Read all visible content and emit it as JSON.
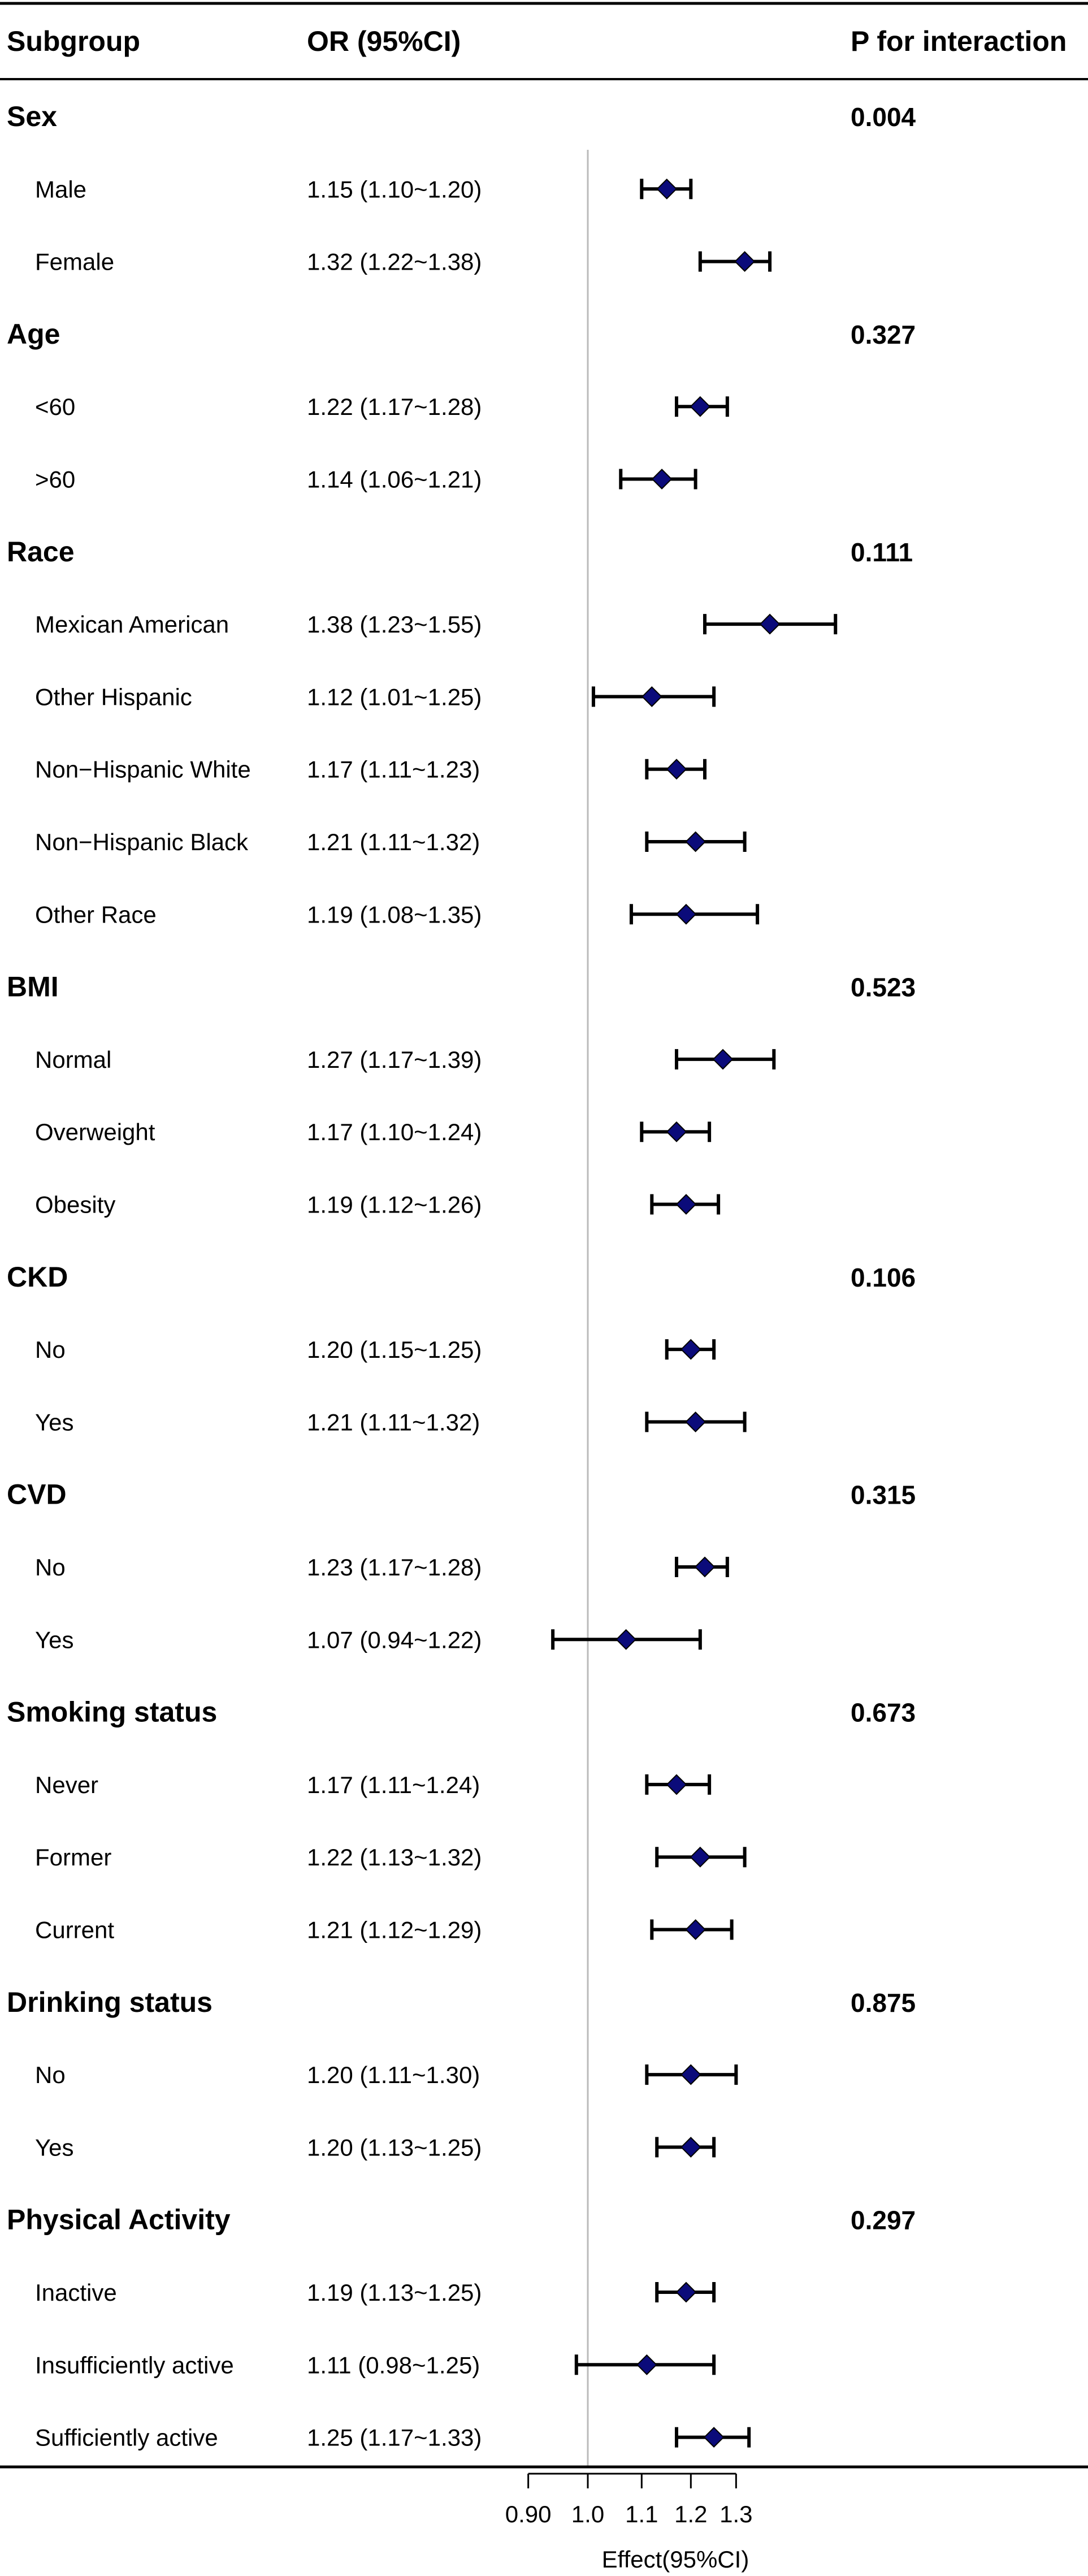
{
  "chart_data": {
    "type": "forest",
    "headers": {
      "subgroup": "Subgroup",
      "or": "OR (95%CI)",
      "p": "P for interaction"
    },
    "xlabel": "Effect(95%CI)",
    "reference_line": 1.0,
    "xticks": [
      0.9,
      1.0,
      1.1,
      1.2,
      1.3
    ],
    "xtick_labels": [
      "0.90",
      "1.0",
      "1.1",
      "1.2",
      "1.3"
    ],
    "x_scale": "log",
    "xlim": [
      0.9,
      1.3
    ],
    "colors": {
      "marker": "#0b0b7a",
      "line": "#000000",
      "ref": "#bbbbbb"
    },
    "rows": [
      {
        "kind": "group",
        "label": "Sex",
        "p": "0.004"
      },
      {
        "kind": "item",
        "label": "Male",
        "or_text": "1.15 (1.10~1.20)",
        "est": 1.15,
        "lo": 1.1,
        "hi": 1.2
      },
      {
        "kind": "item",
        "label": "Female",
        "or_text": "1.32 (1.22~1.38)",
        "est": 1.32,
        "lo": 1.22,
        "hi": 1.38
      },
      {
        "kind": "group",
        "label": "Age",
        "p": "0.327"
      },
      {
        "kind": "item",
        "label": "<60",
        "or_text": "1.22 (1.17~1.28)",
        "est": 1.22,
        "lo": 1.17,
        "hi": 1.28
      },
      {
        "kind": "item",
        "label": ">60",
        "or_text": "1.14 (1.06~1.21)",
        "est": 1.14,
        "lo": 1.06,
        "hi": 1.21
      },
      {
        "kind": "group",
        "label": "Race",
        "p": "0.111"
      },
      {
        "kind": "item",
        "label": "Mexican American",
        "or_text": "1.38 (1.23~1.55)",
        "est": 1.38,
        "lo": 1.23,
        "hi": 1.55
      },
      {
        "kind": "item",
        "label": "Other Hispanic",
        "or_text": "1.12 (1.01~1.25)",
        "est": 1.12,
        "lo": 1.01,
        "hi": 1.25
      },
      {
        "kind": "item",
        "label": "Non−Hispanic White",
        "or_text": "1.17 (1.11~1.23)",
        "est": 1.17,
        "lo": 1.11,
        "hi": 1.23
      },
      {
        "kind": "item",
        "label": "Non−Hispanic Black",
        "or_text": "1.21 (1.11~1.32)",
        "est": 1.21,
        "lo": 1.11,
        "hi": 1.32
      },
      {
        "kind": "item",
        "label": "Other Race",
        "or_text": "1.19 (1.08~1.35)",
        "est": 1.19,
        "lo": 1.08,
        "hi": 1.35
      },
      {
        "kind": "group",
        "label": "BMI",
        "p": "0.523"
      },
      {
        "kind": "item",
        "label": "Normal",
        "or_text": "1.27 (1.17~1.39)",
        "est": 1.27,
        "lo": 1.17,
        "hi": 1.39
      },
      {
        "kind": "item",
        "label": "Overweight",
        "or_text": "1.17 (1.10~1.24)",
        "est": 1.17,
        "lo": 1.1,
        "hi": 1.24
      },
      {
        "kind": "item",
        "label": "Obesity",
        "or_text": "1.19 (1.12~1.26)",
        "est": 1.19,
        "lo": 1.12,
        "hi": 1.26
      },
      {
        "kind": "group",
        "label": "CKD",
        "p": "0.106"
      },
      {
        "kind": "item",
        "label": "No",
        "or_text": "1.20 (1.15~1.25)",
        "est": 1.2,
        "lo": 1.15,
        "hi": 1.25
      },
      {
        "kind": "item",
        "label": "Yes",
        "or_text": "1.21 (1.11~1.32)",
        "est": 1.21,
        "lo": 1.11,
        "hi": 1.32
      },
      {
        "kind": "group",
        "label": "CVD",
        "p": "0.315"
      },
      {
        "kind": "item",
        "label": "No",
        "or_text": "1.23 (1.17~1.28)",
        "est": 1.23,
        "lo": 1.17,
        "hi": 1.28
      },
      {
        "kind": "item",
        "label": "Yes",
        "or_text": "1.07 (0.94~1.22)",
        "est": 1.07,
        "lo": 0.94,
        "hi": 1.22
      },
      {
        "kind": "group",
        "label": "Smoking status",
        "p": "0.673"
      },
      {
        "kind": "item",
        "label": "Never",
        "or_text": "1.17 (1.11~1.24)",
        "est": 1.17,
        "lo": 1.11,
        "hi": 1.24
      },
      {
        "kind": "item",
        "label": "Former",
        "or_text": "1.22 (1.13~1.32)",
        "est": 1.22,
        "lo": 1.13,
        "hi": 1.32
      },
      {
        "kind": "item",
        "label": "Current",
        "or_text": "1.21 (1.12~1.29)",
        "est": 1.21,
        "lo": 1.12,
        "hi": 1.29
      },
      {
        "kind": "group",
        "label": "Drinking status",
        "p": "0.875"
      },
      {
        "kind": "item",
        "label": "No",
        "or_text": "1.20 (1.11~1.30)",
        "est": 1.2,
        "lo": 1.11,
        "hi": 1.3
      },
      {
        "kind": "item",
        "label": "Yes",
        "or_text": "1.20 (1.13~1.25)",
        "est": 1.2,
        "lo": 1.13,
        "hi": 1.25
      },
      {
        "kind": "group",
        "label": "Physical Activity",
        "p": "0.297"
      },
      {
        "kind": "item",
        "label": "Inactive",
        "or_text": "1.19 (1.13~1.25)",
        "est": 1.19,
        "lo": 1.13,
        "hi": 1.25
      },
      {
        "kind": "item",
        "label": "Insufficiently active",
        "or_text": "1.11 (0.98~1.25)",
        "est": 1.11,
        "lo": 0.98,
        "hi": 1.25
      },
      {
        "kind": "item",
        "label": "Sufficiently active",
        "or_text": "1.25 (1.17~1.33)",
        "est": 1.25,
        "lo": 1.17,
        "hi": 1.33
      }
    ]
  }
}
